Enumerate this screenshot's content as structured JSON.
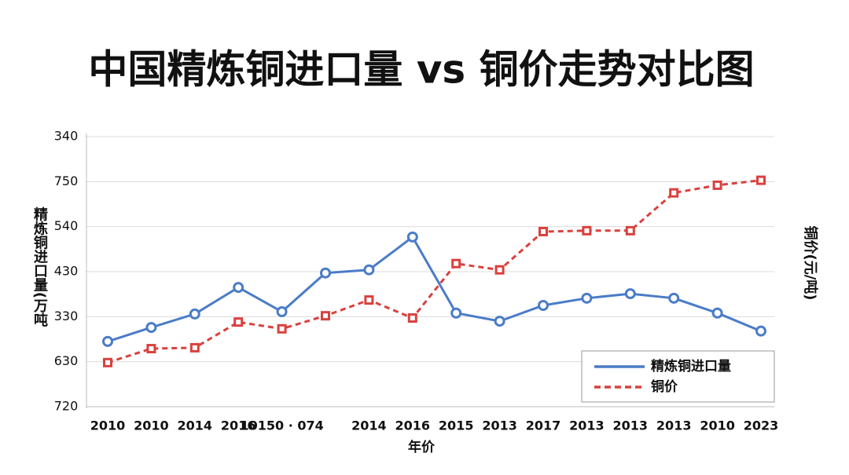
{
  "chart_data": {
    "type": "line",
    "title": "中国精炼铜进口量 vs 铜价走势对比图",
    "y_label": "精炼铜进口量(万吨",
    "y2_label": "铜价(元/吨)",
    "x_label": "年价",
    "categories": [
      "2010",
      "2010",
      "2014",
      "2016",
      "10150 · 074",
      null,
      "2014",
      "2016",
      "2015",
      "2013",
      "2017",
      "2013",
      "2013",
      "2013",
      "2010",
      "2023"
    ],
    "ylim": [
      0,
      6
    ],
    "yticks": [
      {
        "value": 0,
        "label": "720"
      },
      {
        "value": 1,
        "label": "630"
      },
      {
        "value": 2,
        "label": "330"
      },
      {
        "value": 3,
        "label": "430"
      },
      {
        "value": 4,
        "label": "540"
      },
      {
        "value": 5,
        "label": "750"
      },
      {
        "value": 6,
        "label": "340"
      }
    ],
    "grid": true,
    "legend": "lower right",
    "series": [
      {
        "name": "精炼铜进口量",
        "color": "#4a7cc7",
        "dash": false,
        "marker": "circle",
        "values": [
          1.45,
          1.76,
          2.06,
          2.65,
          2.11,
          2.97,
          3.04,
          3.77,
          2.08,
          1.9,
          2.25,
          2.41,
          2.51,
          2.41,
          2.08,
          1.68
        ]
      },
      {
        "name": "铜价",
        "color": "#d9413e",
        "dash": true,
        "marker": "square",
        "values": [
          0.98,
          1.29,
          1.31,
          1.88,
          1.73,
          2.02,
          2.37,
          1.97,
          3.18,
          3.04,
          3.89,
          3.91,
          3.91,
          4.75,
          4.92,
          5.03
        ]
      }
    ]
  }
}
